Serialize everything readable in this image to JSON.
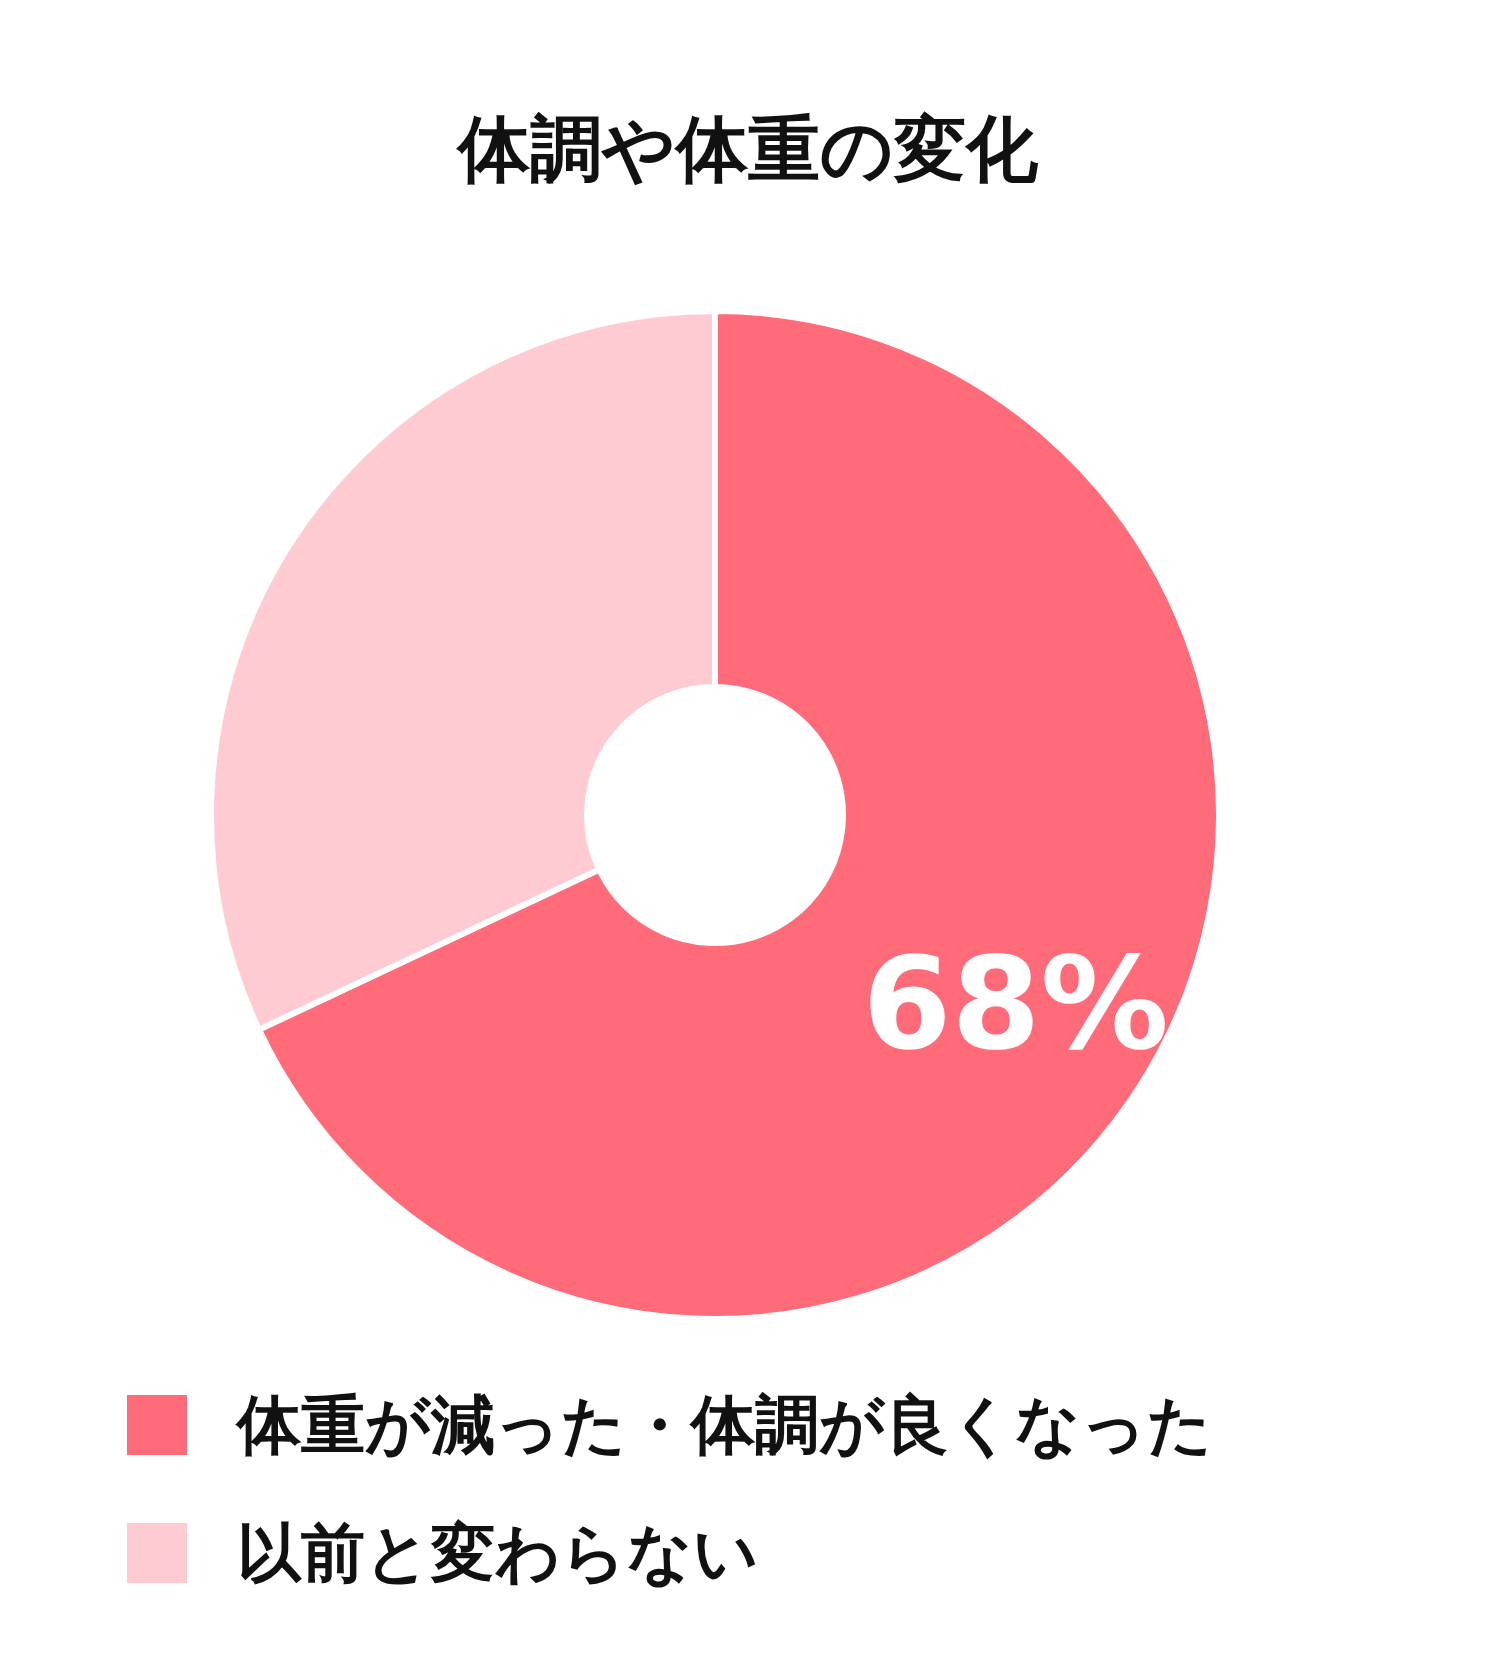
{
  "chart_data": {
    "type": "donut",
    "title": "体調や体重の変化",
    "categories": [
      "体重が減った・体調が良くなった",
      "以前と変わらない"
    ],
    "values": [
      68,
      32
    ],
    "colors": [
      "#ff6b78",
      "#ffcbd2"
    ],
    "value_labels": [
      "68%",
      null
    ],
    "legend": "bottom"
  }
}
